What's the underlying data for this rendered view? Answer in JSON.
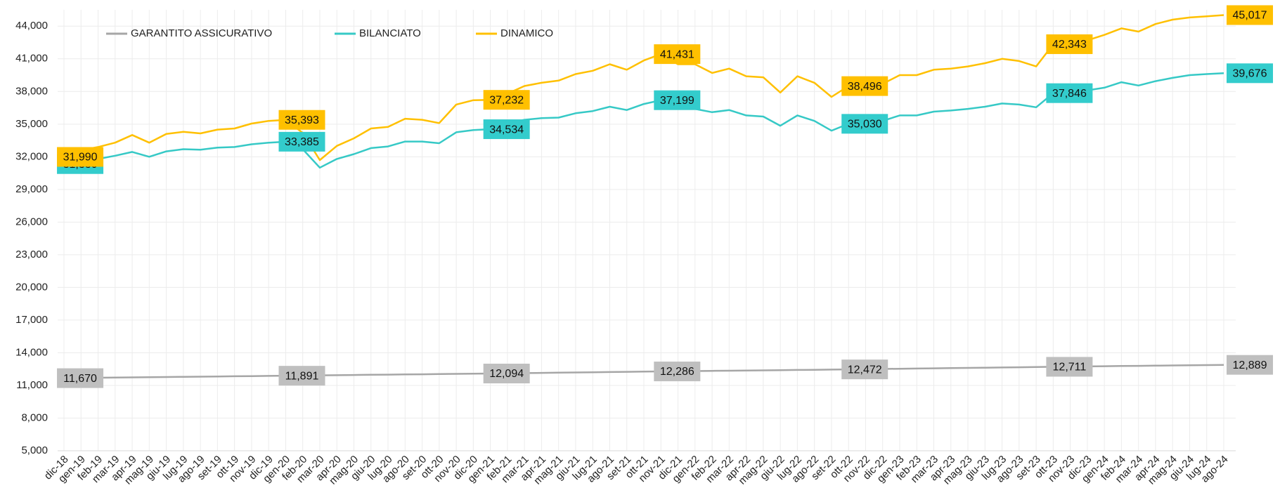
{
  "chart_data": {
    "type": "line",
    "categories": [
      "dic-18",
      "gen-19",
      "feb-19",
      "mar-19",
      "apr-19",
      "mag-19",
      "giu-19",
      "lug-19",
      "ago-19",
      "set-19",
      "ott-19",
      "nov-19",
      "dic-19",
      "gen-20",
      "feb-20",
      "mar-20",
      "apr-20",
      "mag-20",
      "giu-20",
      "lug-20",
      "ago-20",
      "set-20",
      "ott-20",
      "nov-20",
      "dic-20",
      "gen-21",
      "feb-21",
      "mar-21",
      "apr-21",
      "mag-21",
      "giu-21",
      "lug-21",
      "ago-21",
      "set-21",
      "ott-21",
      "nov-21",
      "dic-21",
      "gen-22",
      "feb-22",
      "mar-22",
      "apr-22",
      "mag-22",
      "giu-22",
      "lug-22",
      "ago-22",
      "set-22",
      "ott-22",
      "nov-22",
      "dic-22",
      "gen-23",
      "feb-23",
      "mar-23",
      "apr-23",
      "mag-23",
      "giu-23",
      "lug-23",
      "ago-23",
      "set-23",
      "ott-23",
      "nov-23",
      "dic-23",
      "gen-24",
      "feb-24",
      "mar-24",
      "apr-24",
      "mag-24",
      "giu-24",
      "lug-24",
      "ago-24"
    ],
    "series": [
      {
        "name": "GARANTITO ASSICURATIVO",
        "color": "#a6a6a6",
        "label_color": "#bfbfbf",
        "values": [
          11670,
          11687,
          11704,
          11721,
          11738,
          11755,
          11772,
          11789,
          11806,
          11823,
          11840,
          11857,
          11874,
          11891,
          11908,
          11925,
          11942,
          11959,
          11976,
          11993,
          12010,
          12026,
          12043,
          12060,
          12077,
          12094,
          12113,
          12132,
          12152,
          12171,
          12190,
          12209,
          12228,
          12248,
          12267,
          12286,
          12303,
          12320,
          12337,
          12354,
          12371,
          12387,
          12404,
          12421,
          12438,
          12455,
          12472,
          12492,
          12512,
          12532,
          12552,
          12572,
          12591,
          12611,
          12631,
          12651,
          12671,
          12691,
          12711,
          12729,
          12747,
          12764,
          12782,
          12800,
          12818,
          12836,
          12853,
          12871,
          12889
        ],
        "value_labels": [
          "11,670",
          null,
          null,
          null,
          null,
          null,
          null,
          null,
          null,
          null,
          null,
          null,
          null,
          "11,891",
          null,
          null,
          null,
          null,
          null,
          null,
          null,
          null,
          null,
          null,
          null,
          "12,094",
          null,
          null,
          null,
          null,
          null,
          null,
          null,
          null,
          null,
          "12,286",
          null,
          null,
          null,
          null,
          null,
          null,
          null,
          null,
          null,
          null,
          "12,472",
          null,
          null,
          null,
          null,
          null,
          null,
          null,
          null,
          null,
          null,
          null,
          "12,711",
          null,
          null,
          null,
          null,
          null,
          null,
          null,
          null,
          null,
          "12,889"
        ]
      },
      {
        "name": "BILANCIATO",
        "color": "#36c9c6",
        "label_color": "#33cccc",
        "values": [
          31330,
          31600,
          31800,
          32100,
          32450,
          32000,
          32500,
          32700,
          32650,
          32850,
          32900,
          33150,
          33300,
          33385,
          32700,
          31000,
          31800,
          32250,
          32800,
          32950,
          33400,
          33400,
          33250,
          34250,
          34450,
          34534,
          35100,
          35400,
          35550,
          35600,
          36000,
          36200,
          36600,
          36300,
          36850,
          37199,
          36600,
          36400,
          36100,
          36300,
          35800,
          35700,
          34850,
          35800,
          35300,
          34400,
          35030,
          34800,
          35300,
          35800,
          35800,
          36150,
          36250,
          36400,
          36600,
          36900,
          36800,
          36550,
          37846,
          37950,
          38100,
          38350,
          38850,
          38550,
          38950,
          39250,
          39500,
          39600,
          39676
        ],
        "value_labels": [
          "31,330",
          null,
          null,
          null,
          null,
          null,
          null,
          null,
          null,
          null,
          null,
          null,
          null,
          "33,385",
          null,
          null,
          null,
          null,
          null,
          null,
          null,
          null,
          null,
          null,
          null,
          "34,534",
          null,
          null,
          null,
          null,
          null,
          null,
          null,
          null,
          null,
          "37,199",
          null,
          null,
          null,
          null,
          null,
          null,
          null,
          null,
          null,
          null,
          "35,030",
          null,
          null,
          null,
          null,
          null,
          null,
          null,
          null,
          null,
          null,
          null,
          "37,846",
          null,
          null,
          null,
          null,
          null,
          null,
          null,
          null,
          null,
          "39,676"
        ]
      },
      {
        "name": "DINAMICO",
        "color": "#ffc000",
        "label_color": "#ffc000",
        "values": [
          31990,
          32600,
          32900,
          33300,
          34000,
          33300,
          34100,
          34300,
          34150,
          34500,
          34600,
          35050,
          35300,
          35393,
          34200,
          31700,
          33000,
          33700,
          34600,
          34750,
          35500,
          35400,
          35100,
          36800,
          37200,
          37232,
          37800,
          38500,
          38800,
          39000,
          39600,
          39900,
          40500,
          40000,
          40850,
          41431,
          40500,
          40500,
          39700,
          40100,
          39400,
          39300,
          37900,
          39400,
          38800,
          37500,
          38496,
          38200,
          38700,
          39500,
          39500,
          40000,
          40100,
          40300,
          40600,
          41000,
          40800,
          40300,
          42343,
          42400,
          42700,
          43200,
          43800,
          43500,
          44200,
          44600,
          44800,
          44900,
          45017
        ],
        "value_labels": [
          "31,990",
          null,
          null,
          null,
          null,
          null,
          null,
          null,
          null,
          null,
          null,
          null,
          null,
          "35,393",
          null,
          null,
          null,
          null,
          null,
          null,
          null,
          null,
          null,
          null,
          null,
          "37,232",
          null,
          null,
          null,
          null,
          null,
          null,
          null,
          null,
          null,
          "41,431",
          null,
          null,
          null,
          null,
          null,
          null,
          null,
          null,
          null,
          null,
          "38,496",
          null,
          null,
          null,
          null,
          null,
          null,
          null,
          null,
          null,
          null,
          null,
          "42,343",
          null,
          null,
          null,
          null,
          null,
          null,
          null,
          null,
          null,
          "45,017"
        ]
      }
    ],
    "ylim": [
      5000,
      45500
    ],
    "yticks": [
      {
        "value": 5000,
        "label": "5,000"
      },
      {
        "value": 8000,
        "label": "8,000"
      },
      {
        "value": 11000,
        "label": "11,000"
      },
      {
        "value": 14000,
        "label": "14,000"
      },
      {
        "value": 17000,
        "label": "17,000"
      },
      {
        "value": 20000,
        "label": "20,000"
      },
      {
        "value": 23000,
        "label": "23,000"
      },
      {
        "value": 26000,
        "label": "26,000"
      },
      {
        "value": 29000,
        "label": "29,000"
      },
      {
        "value": 32000,
        "label": "32,000"
      },
      {
        "value": 35000,
        "label": "35,000"
      },
      {
        "value": 38000,
        "label": "38,000"
      },
      {
        "value": 41000,
        "label": "41,000"
      },
      {
        "value": 44000,
        "label": "44,000"
      }
    ],
    "grid": true,
    "legend": "top"
  }
}
